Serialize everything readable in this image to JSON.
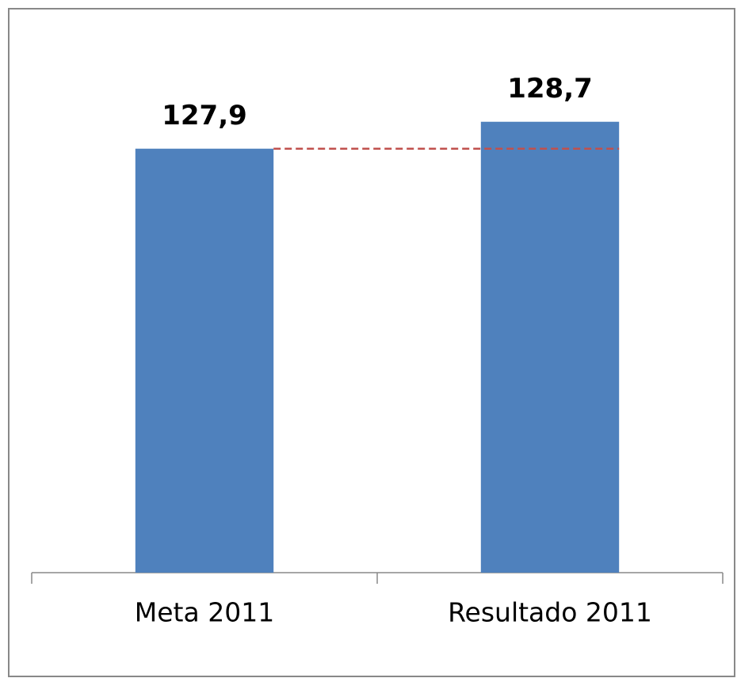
{
  "chart_data": {
    "type": "bar",
    "categories": [
      "Meta 2011",
      "Resultado 2011"
    ],
    "values": [
      127.9,
      128.7
    ],
    "value_labels": [
      "127,9",
      "128,7"
    ],
    "color": "#4f81bd",
    "target_line_color": "#c0504d",
    "ylim": [
      115.3,
      129.8
    ]
  }
}
